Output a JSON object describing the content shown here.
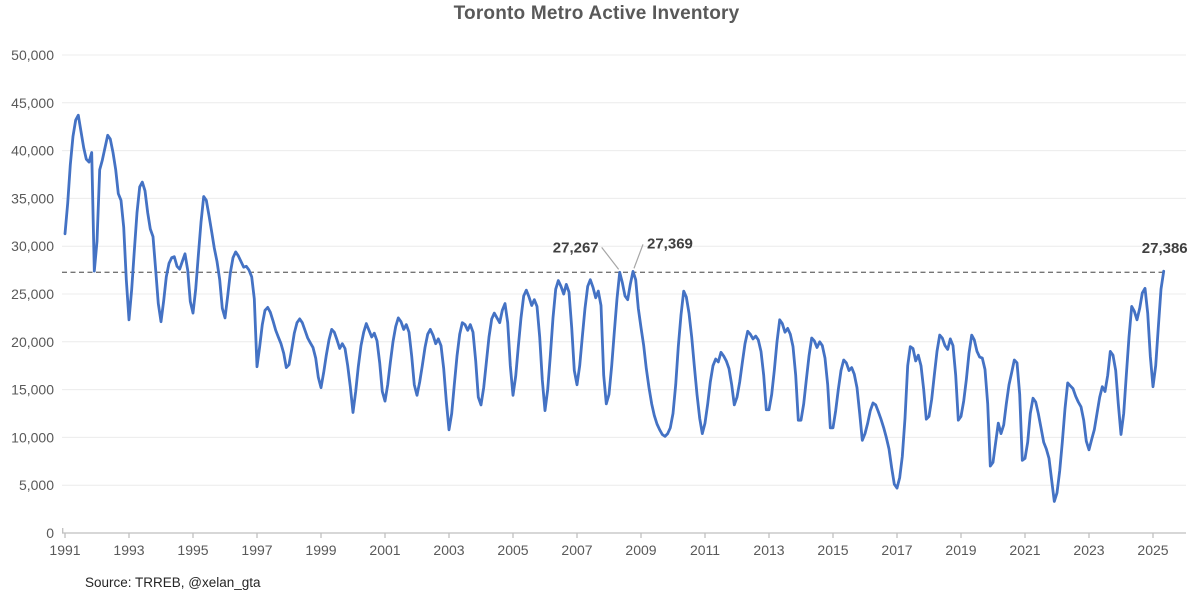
{
  "source_note": "Source: TRREB, @xelan_gta",
  "colors": {
    "line": "#4472C4",
    "reference_dashed": "#757575",
    "grid": "#ECECEC",
    "axis": "#BFBFBF",
    "tick_text": "#595959",
    "title_text": "#595959",
    "annotation_text": "#404040",
    "leader": "#A6A6A6",
    "source_text": "#262626"
  },
  "chart_data": {
    "type": "line",
    "title": "Toronto Metro Active Inventory",
    "xlabel": "",
    "ylabel": "",
    "x_start": "1991-01",
    "x_end": "2025-05",
    "frequency": "monthly",
    "ylim": [
      0,
      50000
    ],
    "grid": "horizontal",
    "legend": "none",
    "x_tick_labels": [
      "1991",
      "1993",
      "1995",
      "1997",
      "1999",
      "2001",
      "2003",
      "2005",
      "2007",
      "2009",
      "2011",
      "2013",
      "2015",
      "2017",
      "2019",
      "2021",
      "2023",
      "2025"
    ],
    "y_tick_labels": [
      "0",
      "5,000",
      "10,000",
      "15,000",
      "20,000",
      "25,000",
      "30,000",
      "35,000",
      "40,000",
      "45,000",
      "50,000"
    ],
    "reference_line": {
      "value": 27267,
      "style": "dashed"
    },
    "annotations": [
      {
        "label": "27,267",
        "date": "2008-05",
        "value": 27267
      },
      {
        "label": "27,369",
        "date": "2008-10",
        "value": 27369
      },
      {
        "label": "27,386",
        "date": "2025-05",
        "value": 27386
      }
    ],
    "series": [
      {
        "name": "Active Inventory",
        "values": [
          31300,
          34500,
          38500,
          41500,
          43200,
          43700,
          42000,
          40300,
          39100,
          38800,
          39800,
          27400,
          30500,
          38000,
          39000,
          40300,
          41600,
          41200,
          39800,
          38000,
          35500,
          34800,
          32000,
          26500,
          22300,
          25500,
          29500,
          33500,
          36200,
          36700,
          35800,
          33500,
          31800,
          31000,
          27500,
          24000,
          22100,
          24300,
          26800,
          28200,
          28800,
          28900,
          27900,
          27600,
          28400,
          29200,
          27500,
          24200,
          23000,
          25500,
          29000,
          32500,
          35200,
          34800,
          33200,
          31500,
          29800,
          28400,
          26500,
          23500,
          22500,
          24800,
          27200,
          28800,
          29400,
          29000,
          28400,
          27800,
          27900,
          27500,
          26800,
          24500,
          17400,
          19500,
          21800,
          23300,
          23600,
          23100,
          22200,
          21200,
          20500,
          19800,
          18800,
          17300,
          17600,
          19200,
          20900,
          22000,
          22400,
          22000,
          21200,
          20400,
          19900,
          19400,
          18300,
          16300,
          15200,
          16800,
          18600,
          20200,
          21300,
          21000,
          20200,
          19300,
          19800,
          19300,
          17500,
          15300,
          12600,
          14800,
          17400,
          19600,
          21000,
          21900,
          21200,
          20500,
          20900,
          20100,
          17800,
          14800,
          13800,
          15500,
          17800,
          20000,
          21600,
          22500,
          22100,
          21300,
          21800,
          21000,
          18500,
          15500,
          14400,
          15800,
          17500,
          19400,
          20800,
          21300,
          20700,
          19800,
          20300,
          19600,
          17200,
          13800,
          10800,
          12500,
          15500,
          18500,
          20800,
          22000,
          21800,
          21200,
          21800,
          21000,
          18000,
          14200,
          13400,
          15200,
          17800,
          20500,
          22400,
          23000,
          22500,
          22000,
          23300,
          24000,
          22000,
          17500,
          14400,
          16400,
          19500,
          22500,
          24800,
          25400,
          24700,
          23800,
          24400,
          23700,
          20500,
          16000,
          12800,
          15000,
          18500,
          22500,
          25500,
          26400,
          25800,
          25000,
          26000,
          25200,
          21500,
          17000,
          15500,
          17500,
          20500,
          23500,
          25800,
          26500,
          25700,
          24600,
          25300,
          23800,
          16500,
          13500,
          14500,
          17500,
          21000,
          24500,
          27267,
          26200,
          24800,
          24400,
          26000,
          27369,
          26500,
          23500,
          21500,
          19600,
          17200,
          15200,
          13500,
          12300,
          11400,
          10800,
          10300,
          10100,
          10400,
          11000,
          12500,
          15500,
          19500,
          22800,
          25300,
          24700,
          23000,
          20500,
          17500,
          14500,
          12000,
          10400,
          11500,
          13500,
          15800,
          17500,
          18200,
          17900,
          18900,
          18500,
          18000,
          17200,
          15500,
          13400,
          14200,
          15800,
          17800,
          19800,
          21100,
          20800,
          20300,
          20600,
          20200,
          19000,
          16500,
          12900,
          12900,
          14500,
          17000,
          20000,
          22300,
          21900,
          21000,
          21400,
          20800,
          19500,
          16500,
          11800,
          11800,
          13500,
          16000,
          18500,
          20400,
          20100,
          19400,
          20000,
          19600,
          18300,
          15500,
          11000,
          11000,
          12800,
          15000,
          17000,
          18100,
          17800,
          17000,
          17300,
          16600,
          15200,
          12500,
          9700,
          10400,
          11500,
          12800,
          13600,
          13400,
          12700,
          11900,
          11000,
          10000,
          8800,
          6800,
          5100,
          4700,
          5800,
          8000,
          12000,
          17500,
          19500,
          19300,
          18000,
          18600,
          17500,
          15000,
          11900,
          12200,
          14000,
          16500,
          19000,
          20700,
          20400,
          19600,
          19200,
          20300,
          19600,
          16500,
          11800,
          12200,
          13800,
          16000,
          18800,
          20700,
          20200,
          19000,
          18400,
          18300,
          17100,
          13500,
          7000,
          7400,
          9500,
          11500,
          10400,
          11300,
          13500,
          15500,
          16800,
          18100,
          17800,
          14500,
          7600,
          7800,
          9500,
          12500,
          14100,
          13700,
          12500,
          11000,
          9500,
          8800,
          7800,
          5500,
          3300,
          4200,
          6500,
          9500,
          13000,
          15700,
          15400,
          15100,
          14300,
          13700,
          13200,
          11800,
          9600,
          8700,
          9800,
          10800,
          12500,
          14200,
          15300,
          14800,
          16500,
          19000,
          18600,
          17000,
          13500,
          10300,
          12500,
          16500,
          20500,
          23700,
          23200,
          22300,
          23500,
          25100,
          25600,
          23000,
          18500,
          15300,
          17500,
          21500,
          25500,
          27386
        ]
      }
    ]
  }
}
